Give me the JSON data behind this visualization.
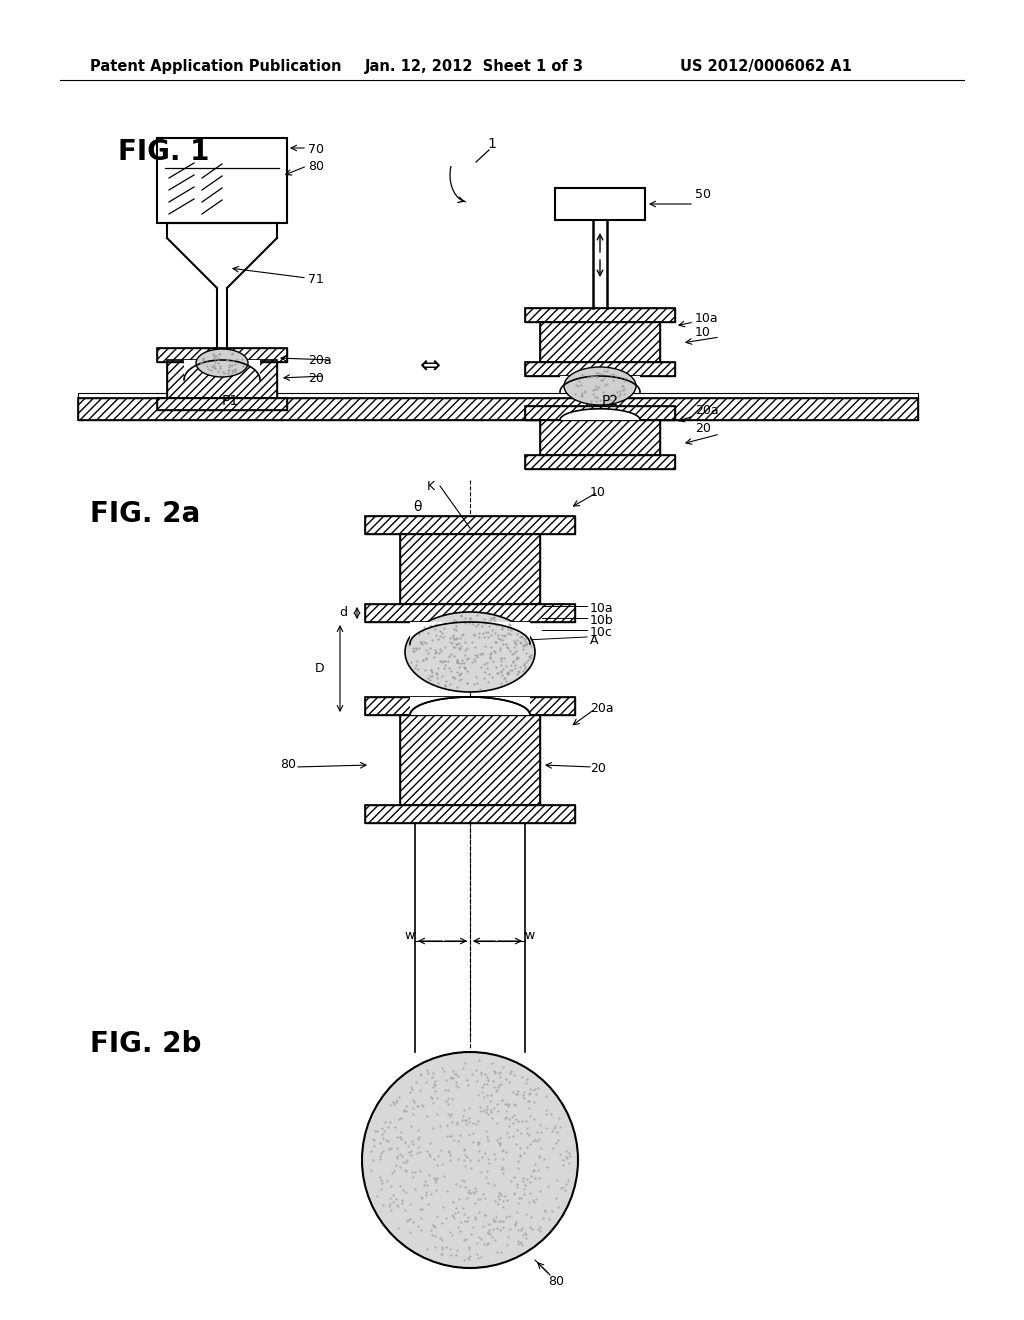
{
  "bg_color": "#ffffff",
  "header_left": "Patent Application Publication",
  "header_mid": "Jan. 12, 2012  Sheet 1 of 3",
  "header_right": "US 2012/0006062 A1",
  "fig1_label": "FIG. 1",
  "fig2a_label": "FIG. 2a",
  "fig2b_label": "FIG. 2b",
  "hatch_color": "#000000",
  "line_color": "#000000",
  "stipple_color": "#aaaaaa",
  "hatch_density": "////",
  "fig1_ref1_label": "1",
  "fig1_left_labels": [
    "70",
    "80",
    "71",
    "20a",
    "20"
  ],
  "fig1_right_labels": [
    "50",
    "10a",
    "10",
    "20a",
    "20"
  ],
  "fig2a_labels": [
    "K",
    "10",
    "10a",
    "10b",
    "10c",
    "A",
    "80",
    "20a",
    "20",
    "D",
    "d"
  ],
  "fig2b_label_80": "80",
  "rail_P1": "P1",
  "rail_P2": "P2"
}
